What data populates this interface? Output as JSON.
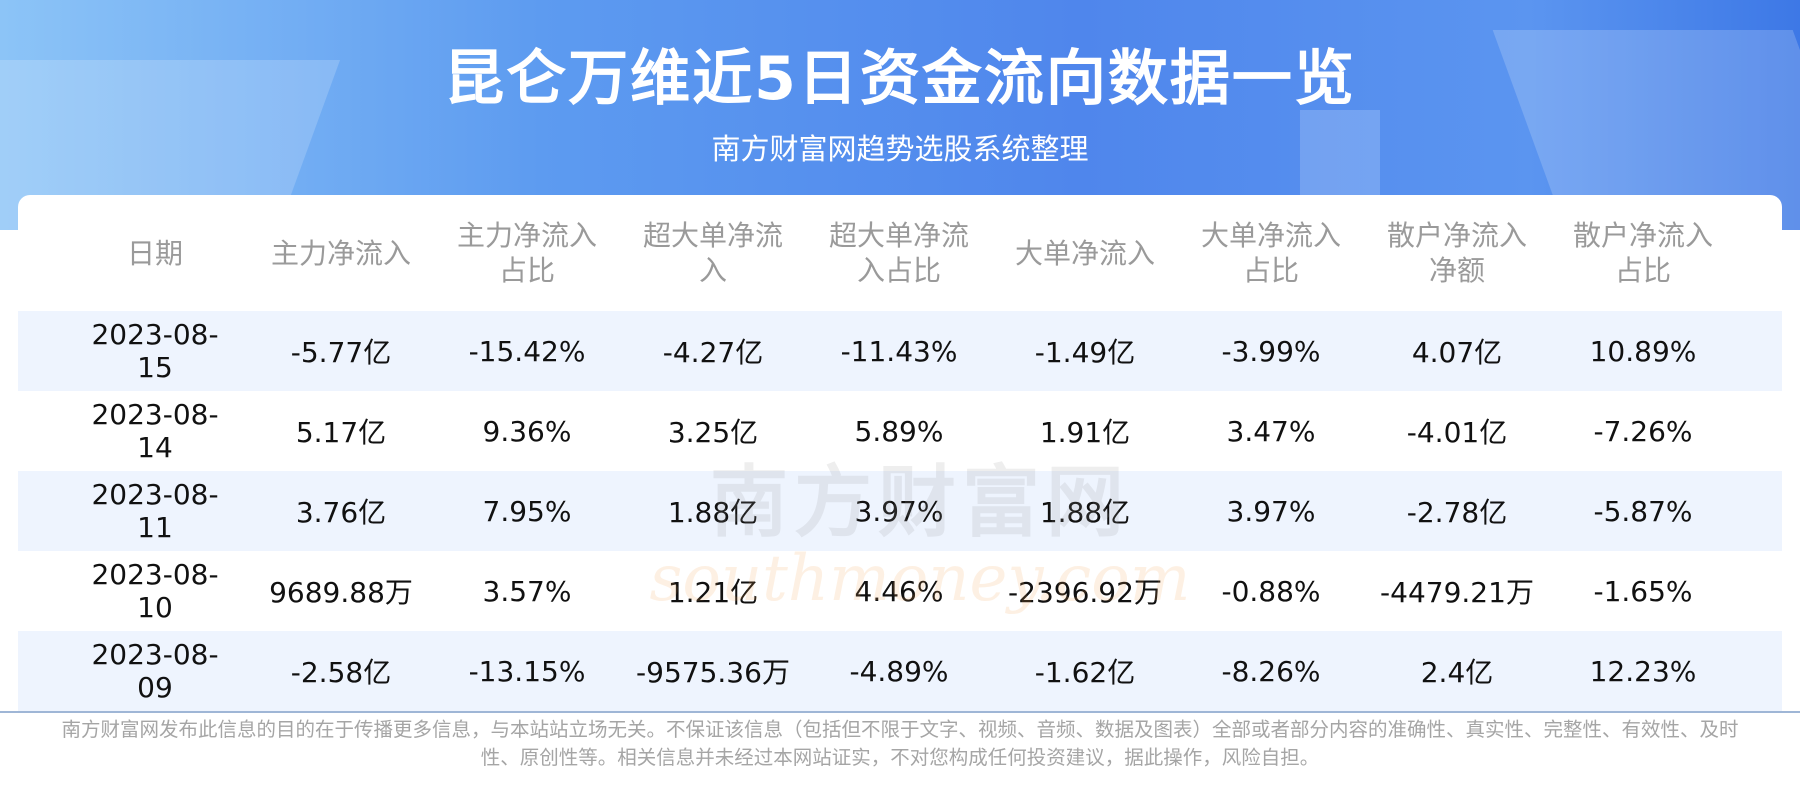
{
  "header": {
    "title": "昆仑万维近5日资金流向数据一览",
    "subtitle": "南方财富网趋势选股系统整理"
  },
  "table": {
    "columns": [
      "日期",
      "主力净流入",
      "主力净流入占比",
      "超大单净流入",
      "超大单净流入占比",
      "大单净流入",
      "大单净流入占比",
      "散户净流入净额",
      "散户净流入占比"
    ],
    "rows": [
      [
        "2023-08-15",
        "-5.77亿",
        "-15.42%",
        "-4.27亿",
        "-11.43%",
        "-1.49亿",
        "-3.99%",
        "4.07亿",
        "10.89%"
      ],
      [
        "2023-08-14",
        "5.17亿",
        "9.36%",
        "3.25亿",
        "5.89%",
        "1.91亿",
        "3.47%",
        "-4.01亿",
        "-7.26%"
      ],
      [
        "2023-08-11",
        "3.76亿",
        "7.95%",
        "1.88亿",
        "3.97%",
        "1.88亿",
        "3.97%",
        "-2.78亿",
        "-5.87%"
      ],
      [
        "2023-08-10",
        "9689.88万",
        "3.57%",
        "1.21亿",
        "4.46%",
        "-2396.92万",
        "-0.88%",
        "-4479.21万",
        "-1.65%"
      ],
      [
        "2023-08-09",
        "-2.58亿",
        "-13.15%",
        "-9575.36万",
        "-4.89%",
        "-1.62亿",
        "-8.26%",
        "2.4亿",
        "12.23%"
      ]
    ]
  },
  "watermark": {
    "name": "南方财富网",
    "url": "southmoney.com"
  },
  "footer": {
    "disclaimer": "南方财富网发布此信息的目的在于传播更多信息，与本站站立场无关。不保证该信息（包括但不限于文字、视频、音频、数据及图表）全部或者部分内容的准确性、真实性、完整性、有效性、及时性、原创性等。相关信息并未经过本网站证实，不对您构成任何投资建议，据此操作，风险自担。"
  }
}
